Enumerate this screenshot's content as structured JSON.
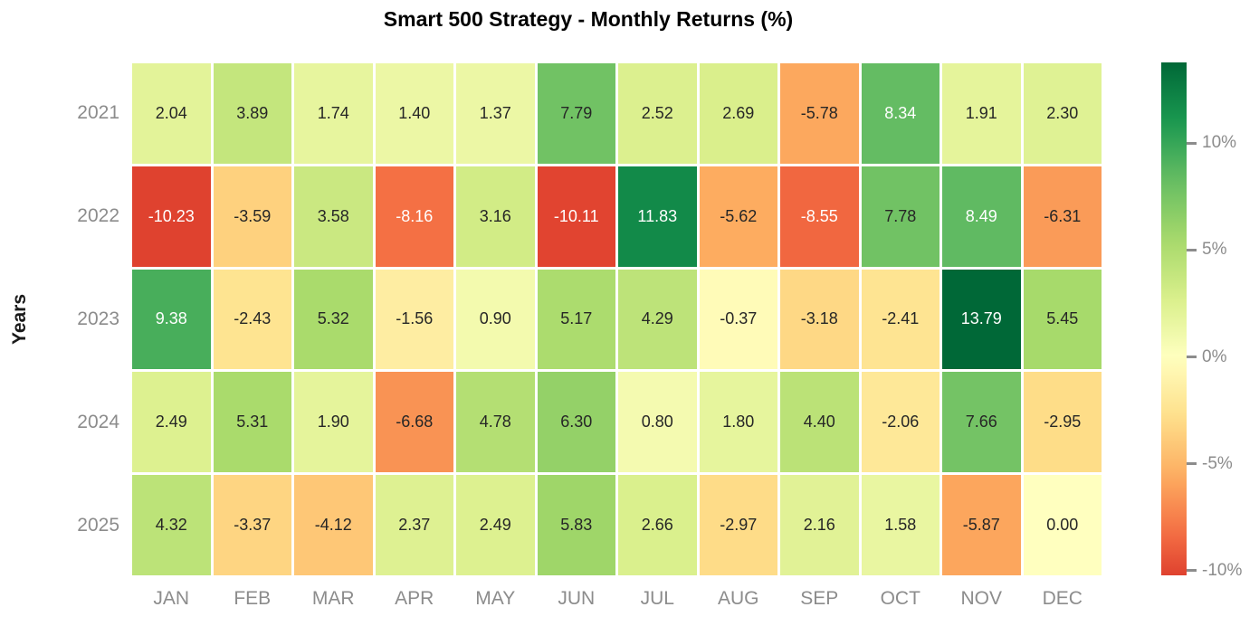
{
  "title": "Smart 500 Strategy - Monthly Returns (%)",
  "axes": {
    "ylabel": "Years"
  },
  "chart_data": {
    "type": "heatmap",
    "title": "Smart 500 Strategy - Monthly Returns (%)",
    "xlabel": "",
    "ylabel": "Years",
    "x_categories": [
      "JAN",
      "FEB",
      "MAR",
      "APR",
      "MAY",
      "JUN",
      "JUL",
      "AUG",
      "SEP",
      "OCT",
      "NOV",
      "DEC"
    ],
    "y_categories": [
      "2021",
      "2022",
      "2023",
      "2024",
      "2025"
    ],
    "series": [
      {
        "name": "2021",
        "values": [
          2.04,
          3.89,
          1.74,
          1.4,
          1.37,
          7.79,
          2.52,
          2.69,
          -5.78,
          8.34,
          1.91,
          2.3
        ]
      },
      {
        "name": "2022",
        "values": [
          -10.23,
          -3.59,
          3.58,
          -8.16,
          3.16,
          -10.11,
          11.83,
          -5.62,
          -8.55,
          7.78,
          8.49,
          -6.31
        ]
      },
      {
        "name": "2023",
        "values": [
          9.38,
          -2.43,
          5.32,
          -1.56,
          0.9,
          5.17,
          4.29,
          -0.37,
          -3.18,
          -2.41,
          13.79,
          5.45
        ]
      },
      {
        "name": "2024",
        "values": [
          2.49,
          5.31,
          1.9,
          -6.68,
          4.78,
          6.3,
          0.8,
          1.8,
          4.4,
          -2.06,
          7.66,
          -2.95
        ]
      },
      {
        "name": "2025",
        "values": [
          4.32,
          -3.37,
          -4.12,
          2.37,
          2.49,
          5.83,
          2.66,
          -2.97,
          2.16,
          1.58,
          -5.87,
          0.0
        ]
      }
    ],
    "annotation_decimals": 2,
    "colormap": "RdYlGn",
    "colormap_stops": [
      "#a50026",
      "#d73027",
      "#f46d43",
      "#fdae61",
      "#fee08b",
      "#ffffbf",
      "#d9ef8b",
      "#a6d96a",
      "#66bd63",
      "#1a9850",
      "#006837"
    ],
    "center": 0,
    "vmin": -10.23,
    "vmax": 13.79,
    "grid": false,
    "colorbar": {
      "position": "right",
      "tick_labels": [
        "10%",
        "5%",
        "0%",
        "-5%",
        "-10%"
      ],
      "tick_values": [
        10,
        5,
        0,
        -5,
        -10
      ]
    }
  },
  "colors": {
    "background": "#ffffff",
    "title_text": "#000000",
    "axis_label_text": "#1a1a1a",
    "tick_label_text": "#8c8c8c",
    "annotation_dark": "#262626",
    "annotation_light": "#ffffff",
    "cell_gap": "#ffffff"
  }
}
